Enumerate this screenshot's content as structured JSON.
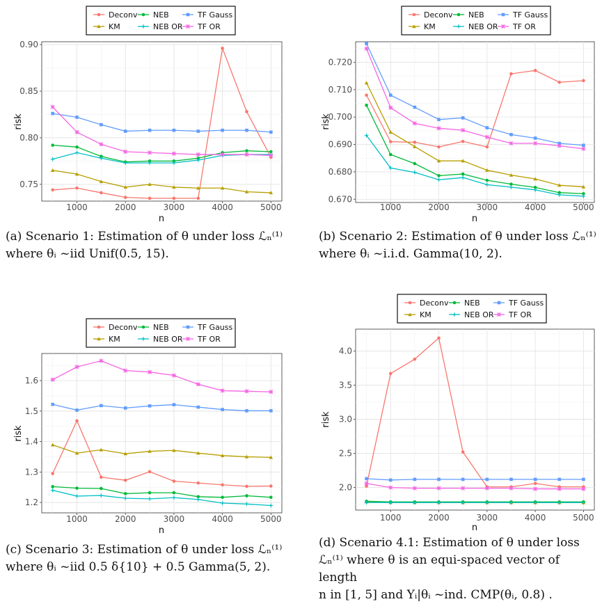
{
  "legend_labels": [
    "Deconv",
    "NEB",
    "TF Gauss",
    "KM",
    "NEB OR",
    "TF OR"
  ],
  "series_colors": {
    "Deconv": "#F8766D",
    "KM": "#B79F00",
    "NEB": "#00BA38",
    "NEB OR": "#00BFC4",
    "TF Gauss": "#619CFF",
    "TF OR": "#F564E3"
  },
  "chart_data": [
    {
      "type": "line",
      "panel": "a",
      "xlabel": "n",
      "ylabel": "risk",
      "x": [
        500,
        1000,
        1500,
        2000,
        2500,
        3000,
        3500,
        4000,
        4500,
        5000
      ],
      "xlim": [
        275,
        5225
      ],
      "ylim": [
        0.732,
        0.903
      ],
      "xticks": [
        1000,
        2000,
        3000,
        4000,
        5000
      ],
      "yticks": [
        "0.75",
        "0.80",
        "0.85",
        "0.90"
      ],
      "series": [
        {
          "name": "Deconv",
          "values": [
            0.744,
            0.746,
            0.741,
            0.736,
            0.735,
            0.735,
            0.735,
            0.896,
            0.828,
            0.779
          ]
        },
        {
          "name": "KM",
          "values": [
            0.765,
            0.761,
            0.753,
            0.747,
            0.75,
            0.747,
            0.746,
            0.746,
            0.742,
            0.741
          ]
        },
        {
          "name": "NEB",
          "values": [
            0.792,
            0.79,
            0.78,
            0.774,
            0.775,
            0.775,
            0.778,
            0.784,
            0.786,
            0.785
          ]
        },
        {
          "name": "NEB OR",
          "values": [
            0.777,
            0.784,
            0.778,
            0.773,
            0.773,
            0.773,
            0.776,
            0.781,
            0.782,
            0.782
          ]
        },
        {
          "name": "TF Gauss",
          "values": [
            0.826,
            0.822,
            0.814,
            0.807,
            0.808,
            0.808,
            0.807,
            0.808,
            0.808,
            0.806
          ]
        },
        {
          "name": "TF OR",
          "values": [
            0.833,
            0.806,
            0.793,
            0.785,
            0.784,
            0.783,
            0.782,
            0.782,
            0.782,
            0.781
          ]
        }
      ],
      "caption": {
        "line1": "(a) Scenario 1: Estimation of θ under loss ℒₙ⁽¹⁾",
        "line2": "where θᵢ ~iid Unif(0.5, 15)."
      }
    },
    {
      "type": "line",
      "panel": "b",
      "xlabel": "n",
      "ylabel": "risk",
      "x": [
        500,
        1000,
        1500,
        2000,
        2500,
        3000,
        3500,
        4000,
        4500,
        5000
      ],
      "xlim": [
        275,
        5225
      ],
      "ylim": [
        0.6688,
        0.7275
      ],
      "xticks": [
        1000,
        2000,
        3000,
        4000,
        5000
      ],
      "yticks": [
        "0.670",
        "0.680",
        "0.690",
        "0.700",
        "0.710",
        "0.720"
      ],
      "series": [
        {
          "name": "Deconv",
          "values": [
            0.708,
            0.691,
            0.6908,
            0.6891,
            0.6911,
            0.6891,
            0.7158,
            0.717,
            0.7127,
            0.7133
          ]
        },
        {
          "name": "KM",
          "values": [
            0.7125,
            0.6945,
            0.6892,
            0.684,
            0.684,
            0.6806,
            0.6788,
            0.6774,
            0.6751,
            0.6745
          ]
        },
        {
          "name": "NEB",
          "values": [
            0.7043,
            0.6863,
            0.683,
            0.6786,
            0.6792,
            0.6769,
            0.6755,
            0.6743,
            0.6724,
            0.672
          ]
        },
        {
          "name": "NEB OR",
          "values": [
            0.6933,
            0.6814,
            0.6798,
            0.6771,
            0.6779,
            0.6753,
            0.6744,
            0.6734,
            0.6716,
            0.6711
          ]
        },
        {
          "name": "TF Gauss",
          "values": [
            0.7268,
            0.708,
            0.7036,
            0.6991,
            0.6997,
            0.6961,
            0.6936,
            0.6923,
            0.6904,
            0.6897
          ]
        },
        {
          "name": "TF OR",
          "values": [
            0.725,
            0.7034,
            0.6977,
            0.6959,
            0.6952,
            0.6927,
            0.6904,
            0.6904,
            0.6895,
            0.6884
          ]
        }
      ],
      "caption": {
        "line1": "(b) Scenario 2: Estimation of θ under loss ℒₙ⁽¹⁾",
        "line2": "where θᵢ ~i.i.d. Gamma(10, 2)."
      }
    },
    {
      "type": "line",
      "panel": "c",
      "xlabel": "n",
      "ylabel": "risk",
      "x": [
        500,
        1000,
        1500,
        2000,
        2500,
        3000,
        3500,
        4000,
        4500,
        5000
      ],
      "xlim": [
        275,
        5225
      ],
      "ylim": [
        1.166,
        1.689
      ],
      "xticks": [
        1000,
        2000,
        3000,
        4000,
        5000
      ],
      "yticks": [
        "1.2",
        "1.3",
        "1.4",
        "1.5",
        "1.6"
      ],
      "series": [
        {
          "name": "Deconv",
          "values": [
            1.295,
            1.468,
            1.283,
            1.273,
            1.301,
            1.27,
            1.264,
            1.258,
            1.253,
            1.254
          ]
        },
        {
          "name": "KM",
          "values": [
            1.389,
            1.362,
            1.373,
            1.36,
            1.368,
            1.371,
            1.362,
            1.354,
            1.35,
            1.348
          ]
        },
        {
          "name": "NEB",
          "values": [
            1.252,
            1.247,
            1.246,
            1.229,
            1.232,
            1.232,
            1.219,
            1.217,
            1.222,
            1.217
          ]
        },
        {
          "name": "NEB OR",
          "values": [
            1.24,
            1.221,
            1.223,
            1.214,
            1.212,
            1.216,
            1.21,
            1.198,
            1.195,
            1.19
          ]
        },
        {
          "name": "TF Gauss",
          "values": [
            1.522,
            1.503,
            1.518,
            1.51,
            1.517,
            1.521,
            1.513,
            1.505,
            1.501,
            1.501
          ]
        },
        {
          "name": "TF OR",
          "values": [
            1.603,
            1.645,
            1.665,
            1.633,
            1.628,
            1.617,
            1.588,
            1.567,
            1.565,
            1.563
          ]
        }
      ],
      "caption": {
        "line1": "(c) Scenario 3: Estimation of θ under loss ℒₙ⁽¹⁾",
        "line2": "where θᵢ ~iid 0.5 δ{10} + 0.5 Gamma(5, 2)."
      }
    },
    {
      "type": "line",
      "panel": "d",
      "xlabel": "n",
      "ylabel": "risk",
      "x": [
        500,
        1000,
        1500,
        2000,
        2500,
        3000,
        3500,
        4000,
        4500,
        5000
      ],
      "xlim": [
        275,
        5225
      ],
      "ylim": [
        1.67,
        4.32
      ],
      "xticks": [
        1000,
        2000,
        3000,
        4000,
        5000
      ],
      "yticks": [
        "2.0",
        "2.5",
        "3.0",
        "3.5",
        "4.0"
      ],
      "series": [
        {
          "name": "Deconv",
          "values": [
            2.02,
            3.67,
            3.88,
            4.19,
            2.52,
            2.01,
            2.01,
            2.06,
            2.01,
            2.01
          ]
        },
        {
          "name": "KM",
          "values": [
            1.79,
            1.78,
            1.78,
            1.78,
            1.78,
            1.78,
            1.78,
            1.78,
            1.78,
            1.78
          ]
        },
        {
          "name": "NEB",
          "values": [
            1.8,
            1.79,
            1.79,
            1.79,
            1.79,
            1.79,
            1.79,
            1.79,
            1.79,
            1.79
          ]
        },
        {
          "name": "NEB OR",
          "values": [
            1.78,
            1.78,
            1.78,
            1.78,
            1.78,
            1.78,
            1.78,
            1.78,
            1.78,
            1.78
          ]
        },
        {
          "name": "TF Gauss",
          "values": [
            2.13,
            2.11,
            2.12,
            2.12,
            2.12,
            2.12,
            2.12,
            2.12,
            2.12,
            2.12
          ]
        },
        {
          "name": "TF OR",
          "values": [
            2.06,
            2.0,
            1.99,
            1.99,
            1.99,
            1.99,
            1.99,
            1.98,
            1.98,
            1.98
          ]
        }
      ],
      "caption": {
        "line1": "(d) Scenario 4.1: Estimation of θ under loss",
        "line2": "ℒₙ⁽¹⁾ where θ is an equi-spaced vector of length",
        "line3": "n in [1, 5] and Yᵢ|θᵢ ~ind. CMP(θᵢ, 0.8) ."
      }
    }
  ]
}
